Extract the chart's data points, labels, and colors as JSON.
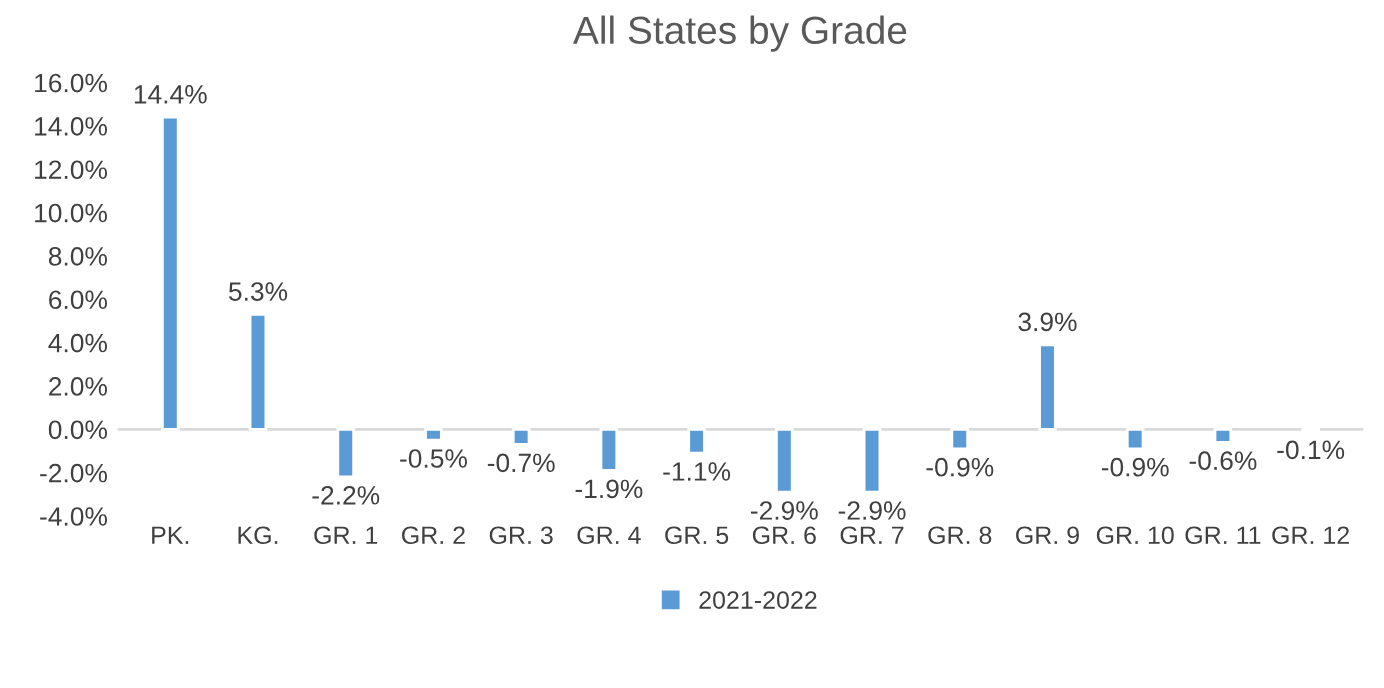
{
  "chart_data": {
    "type": "bar",
    "title": "All States by Grade",
    "categories": [
      "PK.",
      "KG.",
      "GR. 1",
      "GR. 2",
      "GR. 3",
      "GR. 4",
      "GR. 5",
      "GR. 6",
      "GR. 7",
      "GR. 8",
      "GR. 9",
      "GR. 10",
      "GR. 11",
      "GR. 12"
    ],
    "series": [
      {
        "name": "2021-2022",
        "color": "#5b9bd5",
        "values": [
          14.4,
          5.3,
          -2.2,
          -0.5,
          -0.7,
          -1.9,
          -1.1,
          -2.9,
          -2.9,
          -0.9,
          3.9,
          -0.9,
          -0.6,
          -0.1
        ],
        "value_labels": [
          "14.4%",
          "5.3%",
          "-2.2%",
          "-0.5%",
          "-0.7%",
          "-1.9%",
          "-1.1%",
          "-2.9%",
          "-2.9%",
          "-0.9%",
          "3.9%",
          "-0.9%",
          "-0.6%",
          "-0.1%"
        ]
      }
    ],
    "ylim": [
      -4,
      16
    ],
    "yticks": [
      {
        "value": -4,
        "label": "-4.0%"
      },
      {
        "value": -2,
        "label": "-2.0%"
      },
      {
        "value": 0,
        "label": "0.0%"
      },
      {
        "value": 2,
        "label": "2.0%"
      },
      {
        "value": 4,
        "label": "4.0%"
      },
      {
        "value": 6,
        "label": "6.0%"
      },
      {
        "value": 8,
        "label": "8.0%"
      },
      {
        "value": 10,
        "label": "10.0%"
      },
      {
        "value": 12,
        "label": "12.0%"
      },
      {
        "value": 14,
        "label": "14.0%"
      },
      {
        "value": 16,
        "label": "16.0%"
      }
    ],
    "ref_lines": [
      {
        "axis": "y",
        "value": 0,
        "color": "#d9d9d9"
      }
    ],
    "legend": "bottom",
    "grid": false
  }
}
